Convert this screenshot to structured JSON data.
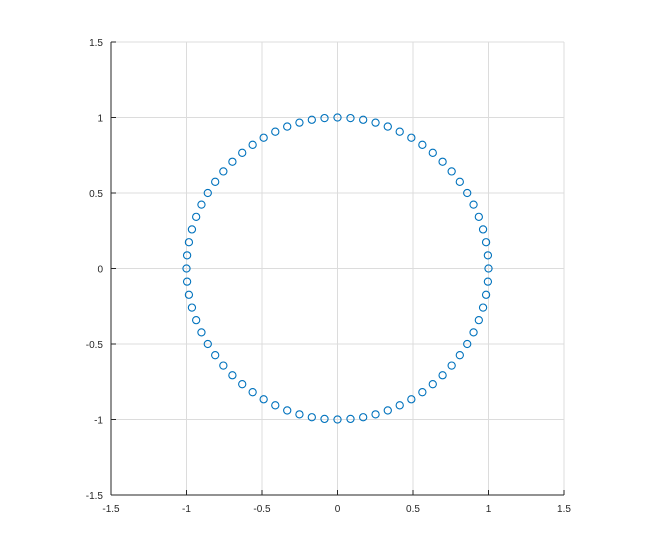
{
  "chart_data": {
    "type": "scatter",
    "title": "",
    "xlabel": "",
    "ylabel": "",
    "xlim": [
      -1.5,
      1.5
    ],
    "ylim": [
      -1.5,
      1.5
    ],
    "grid": true,
    "x_ticks": [
      -1.5,
      -1,
      -0.5,
      0,
      0.5,
      1,
      1.5
    ],
    "y_ticks": [
      -1.5,
      -1,
      -0.5,
      0,
      0.5,
      1,
      1.5
    ],
    "x_tick_labels": [
      "-1.5",
      "-1",
      "-0.5",
      "0",
      "0.5",
      "1",
      "1.5"
    ],
    "y_tick_labels": [
      "-1.5",
      "-1",
      "-0.5",
      "0",
      "0.5",
      "1",
      "1.5"
    ],
    "marker": "circle-open",
    "colors": {
      "marker": "#0072bd",
      "grid": "#dcdcdc",
      "axis": "#262626"
    },
    "series": [
      {
        "x": [
          1.0,
          0.996,
          0.984,
          0.964,
          0.936,
          0.901,
          0.859,
          0.81,
          0.756,
          0.696,
          0.631,
          0.562,
          0.489,
          0.412,
          0.333,
          0.252,
          0.17,
          0.086,
          0.0,
          -0.086,
          -0.17,
          -0.252,
          -0.333,
          -0.412,
          -0.489,
          -0.562,
          -0.631,
          -0.696,
          -0.756,
          -0.81,
          -0.859,
          -0.901,
          -0.936,
          -0.964,
          -0.984,
          -0.996,
          -1.0,
          -0.996,
          -0.984,
          -0.964,
          -0.936,
          -0.901,
          -0.859,
          -0.81,
          -0.756,
          -0.696,
          -0.631,
          -0.562,
          -0.489,
          -0.412,
          -0.333,
          -0.252,
          -0.17,
          -0.086,
          0.0,
          0.086,
          0.17,
          0.252,
          0.333,
          0.412,
          0.489,
          0.562,
          0.631,
          0.696,
          0.756,
          0.81,
          0.859,
          0.901,
          0.936,
          0.964,
          0.984,
          0.996
        ],
        "y": [
          0.0,
          0.087,
          0.174,
          0.259,
          0.342,
          0.423,
          0.5,
          0.574,
          0.643,
          0.707,
          0.766,
          0.819,
          0.866,
          0.906,
          0.94,
          0.966,
          0.985,
          0.996,
          1.0,
          0.996,
          0.985,
          0.966,
          0.94,
          0.906,
          0.866,
          0.819,
          0.766,
          0.707,
          0.643,
          0.574,
          0.5,
          0.423,
          0.342,
          0.259,
          0.174,
          0.087,
          0.0,
          -0.087,
          -0.174,
          -0.259,
          -0.342,
          -0.423,
          -0.5,
          -0.574,
          -0.643,
          -0.707,
          -0.766,
          -0.819,
          -0.866,
          -0.906,
          -0.94,
          -0.966,
          -0.985,
          -0.996,
          -1.0,
          -0.996,
          -0.985,
          -0.966,
          -0.94,
          -0.906,
          -0.866,
          -0.819,
          -0.766,
          -0.707,
          -0.643,
          -0.574,
          -0.5,
          -0.423,
          -0.342,
          -0.259,
          -0.174,
          -0.087
        ]
      }
    ]
  }
}
